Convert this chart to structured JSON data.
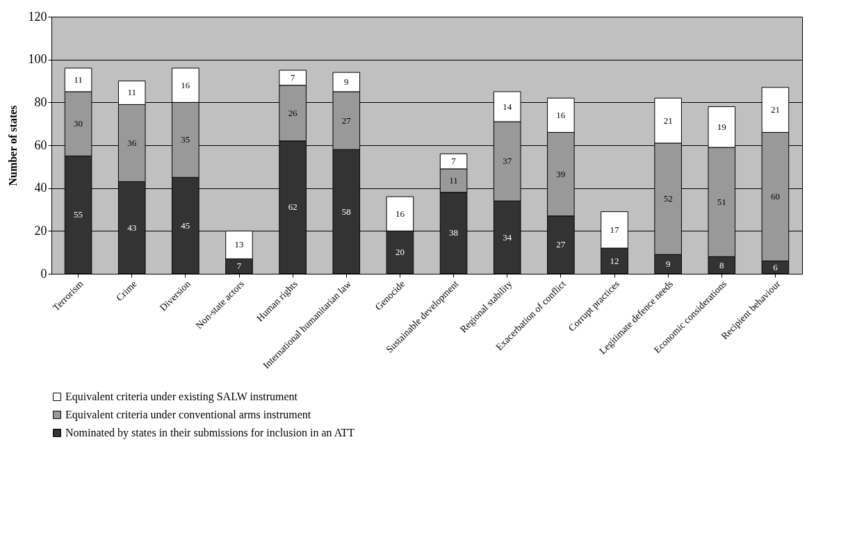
{
  "chart_data": {
    "type": "bar",
    "stacked": true,
    "ylabel": "Number of states",
    "categories": [
      "Terrorism",
      "Crime",
      "Diversion",
      "Non-state actors",
      "Human rights",
      "International humanitarian law",
      "Genocide",
      "Sustainable development",
      "Regional stability",
      "Exacerbation of conflict",
      "Corrupt practices",
      "Legitimate defence needs",
      "Economic considerations",
      "Recipient behaviour"
    ],
    "series": [
      {
        "name": "Nominated by states in their submissions for inclusion in an ATT",
        "color": "#333333",
        "values": [
          55,
          43,
          45,
          7,
          62,
          58,
          20,
          38,
          34,
          27,
          12,
          9,
          8,
          6
        ]
      },
      {
        "name": "Equivalent criteria under conventional arms instrument",
        "color": "#999999",
        "values": [
          30,
          36,
          35,
          null,
          26,
          27,
          null,
          11,
          37,
          39,
          null,
          52,
          51,
          60
        ]
      },
      {
        "name": "Equivalent criteria under existing SALW instrument",
        "color": "#ffffff",
        "values": [
          11,
          11,
          16,
          13,
          7,
          9,
          16,
          7,
          14,
          16,
          17,
          21,
          19,
          21
        ]
      }
    ],
    "ylim": [
      0,
      120
    ],
    "yticks": [
      0,
      20,
      40,
      60,
      80,
      100,
      120
    ],
    "grid": "y",
    "data_labels": true,
    "legend": "bottom"
  }
}
